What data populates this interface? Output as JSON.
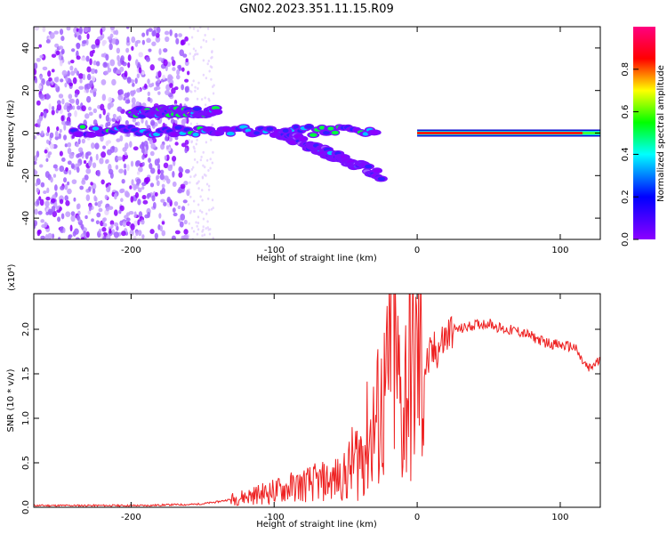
{
  "title": "GN02.2023.351.11.15.R09",
  "colors": {
    "spectrogram_ramp": [
      "#ffffff",
      "#8b00ff",
      "#0000ff",
      "#00ffff",
      "#00ff00",
      "#ffff00",
      "#ff0000"
    ],
    "snr_line": "#ee2222",
    "colorbar_ramp": [
      "#8b00ff",
      "#0000ff",
      "#00ffff",
      "#00ff00",
      "#ffff00",
      "#ff0000",
      "#ff0080"
    ]
  },
  "chart_data": [
    {
      "type": "heatmap",
      "xlabel": "Height of straight line (km)",
      "ylabel": "Frequency (Hz)",
      "xlim": [
        -268,
        128
      ],
      "ylim": [
        -50,
        50
      ],
      "xticks": [
        -200,
        -100,
        0,
        100
      ],
      "xtick_labels": [
        "-200",
        "-100",
        "0",
        "100"
      ],
      "yticks": [
        -40,
        -20,
        0,
        20,
        40
      ],
      "ytick_labels": [
        "-40",
        "-20",
        "0",
        "20",
        "40"
      ],
      "colorbar": {
        "label": "Normalized spectral amplitude",
        "range": [
          0,
          1
        ],
        "ticks": [
          0.0,
          0.2,
          0.4,
          0.6,
          0.8
        ],
        "tick_labels": [
          "0.0",
          "0.2",
          "0.4",
          "0.6",
          "0.8"
        ]
      },
      "features": [
        {
          "name": "noise-scatter",
          "x_range": [
            -268,
            -160
          ],
          "y_range": [
            -50,
            50
          ],
          "amplitude": 0.15
        },
        {
          "name": "upper-band",
          "x_range": [
            -200,
            -140
          ],
          "freq_hz": 10,
          "amplitude": 0.55
        },
        {
          "name": "main-band",
          "x_range": [
            -240,
            -30
          ],
          "freq_hz": 1,
          "amplitude": 0.5
        },
        {
          "name": "descending-echo",
          "x_range": [
            -95,
            -25
          ],
          "freq_hz_start": 0,
          "freq_hz_end": -20,
          "amplitude": 0.4
        },
        {
          "name": "carrier-line",
          "x_range": [
            0,
            128
          ],
          "freq_hz": 0,
          "amplitude": 0.9
        }
      ]
    },
    {
      "type": "line",
      "xlabel": "Height of straight line (km)",
      "ylabel": "SNR (10 * v/v)",
      "y_multiplier": "(x10⁴)",
      "xlim": [
        -268,
        128
      ],
      "ylim": [
        0,
        2.4
      ],
      "xticks": [
        -200,
        -100,
        0,
        100
      ],
      "xtick_labels": [
        "-200",
        "-100",
        "0",
        "100"
      ],
      "yticks": [
        0.0,
        0.5,
        1.0,
        1.5,
        2.0
      ],
      "ytick_labels": [
        "0.0",
        "0.5",
        "1.0",
        "1.5",
        "2.0"
      ],
      "series": [
        {
          "x": [
            -268,
            -250,
            -230,
            -210,
            -190,
            -170,
            -160,
            -150,
            -140,
            -130,
            -120,
            -110,
            -100,
            -90,
            -80,
            -70,
            -60,
            -55,
            -50,
            -45,
            -40,
            -35,
            -30,
            -25,
            -20,
            -18,
            -15,
            -12,
            -10,
            -8,
            -5,
            -2,
            0,
            5,
            10,
            15,
            20,
            25,
            30,
            40,
            50,
            60,
            70,
            80,
            90,
            100,
            110,
            115,
            120,
            125,
            128
          ],
          "y": [
            0.02,
            0.02,
            0.02,
            0.02,
            0.02,
            0.03,
            0.03,
            0.04,
            0.06,
            0.09,
            0.12,
            0.15,
            0.18,
            0.22,
            0.25,
            0.28,
            0.3,
            0.33,
            0.35,
            0.5,
            0.6,
            0.75,
            0.9,
            1.1,
            1.3,
            2.4,
            1.5,
            1.2,
            0.9,
            1.4,
            1.5,
            1.55,
            1.6,
            1.55,
            1.7,
            1.8,
            1.9,
            2.0,
            2.0,
            2.05,
            2.07,
            2.0,
            1.98,
            1.92,
            1.85,
            1.82,
            1.8,
            1.65,
            1.55,
            1.62,
            1.65
          ]
        }
      ]
    }
  ]
}
